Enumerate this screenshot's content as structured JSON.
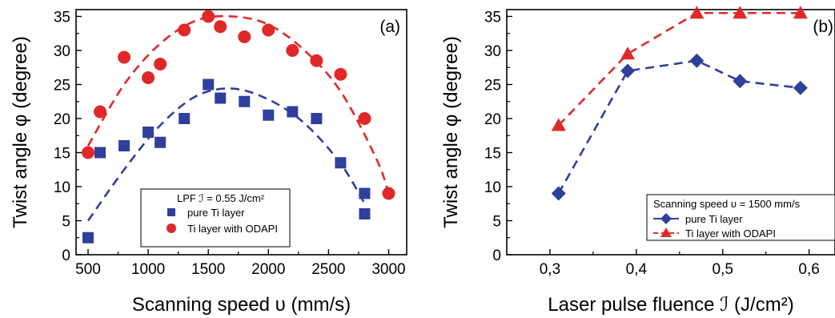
{
  "chart_data": [
    {
      "panel": "(a)",
      "type": "scatter",
      "xlabel": "Scanning speed υ (mm/s)",
      "ylabel": "Twist angle φ (degree)",
      "xlim": [
        400,
        3150
      ],
      "ylim": [
        0,
        36
      ],
      "x_ticks": [
        500,
        1000,
        1500,
        2000,
        2500,
        3000
      ],
      "x_tick_labels": [
        "500",
        "1000",
        "1500",
        "2000",
        "2500",
        "3000"
      ],
      "y_ticks": [
        0,
        5,
        10,
        15,
        20,
        25,
        30,
        35
      ],
      "y_tick_labels": [
        "0",
        "5",
        "10",
        "15",
        "20",
        "25",
        "30",
        "35"
      ],
      "legend": {
        "title": "LPF ℐ = 0.55 J/cm²",
        "placement": "lower-right"
      },
      "series": [
        {
          "name": "pure Ti layer",
          "marker": "square",
          "color": "#2f3f9c",
          "x": [
            500,
            600,
            800,
            1000,
            1100,
            1300,
            1500,
            1600,
            1800,
            2000,
            2200,
            2400,
            2600,
            2800,
            2800
          ],
          "y": [
            2.5,
            15,
            16,
            18,
            16.5,
            20,
            25,
            23,
            22.5,
            20.5,
            21,
            20,
            13.5,
            9,
            6
          ],
          "fit": {
            "style": "dashed",
            "x": [
              500,
              800,
              1100,
              1400,
              1700,
              2000,
              2300,
              2600,
              2800
            ],
            "y": [
              5,
              12.5,
              19,
              23.3,
              24.4,
              22.8,
              19.3,
              13.4,
              7.5
            ]
          }
        },
        {
          "name": "Ti layer with ODAPI",
          "marker": "circle",
          "color": "#e02828",
          "x": [
            500,
            600,
            800,
            1000,
            1100,
            1300,
            1500,
            1600,
            1800,
            2000,
            2200,
            2400,
            2600,
            2800,
            3000
          ],
          "y": [
            15,
            21,
            29,
            26,
            28,
            33,
            35,
            33.5,
            32,
            33,
            30,
            28.5,
            26.5,
            20,
            9
          ],
          "fit": {
            "style": "dashed",
            "x": [
              500,
              800,
              1100,
              1400,
              1700,
              2000,
              2300,
              2600,
              2900,
              3000
            ],
            "y": [
              16,
              25,
              31,
              34.4,
              35,
              33.8,
              30,
              24,
              14,
              9
            ]
          }
        }
      ]
    },
    {
      "panel": "(b)",
      "type": "line",
      "xlabel": "Laser pulse fluence ℐ (J/cm²)",
      "ylabel": "Twist angle φ (degree)",
      "xlim": [
        0.25,
        0.63
      ],
      "ylim": [
        0,
        36
      ],
      "x_ticks": [
        0.3,
        0.4,
        0.5,
        0.6
      ],
      "x_tick_labels": [
        "0,3",
        "0,4",
        "0,5",
        "0,6"
      ],
      "y_ticks": [
        0,
        5,
        10,
        15,
        20,
        25,
        30,
        35
      ],
      "y_tick_labels": [
        "0",
        "5",
        "10",
        "15",
        "20",
        "25",
        "30",
        "35"
      ],
      "legend": {
        "title": "Scanning speed υ = 1500 mm/s",
        "placement": "lower-right"
      },
      "series": [
        {
          "name": "pure Ti layer",
          "marker": "diamond",
          "color": "#2f3f9c",
          "x": [
            0.31,
            0.39,
            0.47,
            0.52,
            0.59
          ],
          "y": [
            9,
            27,
            28.5,
            25.5,
            24.5
          ]
        },
        {
          "name": "Ti layer with ODAPI",
          "marker": "triangle",
          "color": "#e02828",
          "x": [
            0.31,
            0.39,
            0.47,
            0.52,
            0.59
          ],
          "y": [
            19,
            29.5,
            35.5,
            35.5,
            35.5
          ]
        }
      ]
    }
  ]
}
